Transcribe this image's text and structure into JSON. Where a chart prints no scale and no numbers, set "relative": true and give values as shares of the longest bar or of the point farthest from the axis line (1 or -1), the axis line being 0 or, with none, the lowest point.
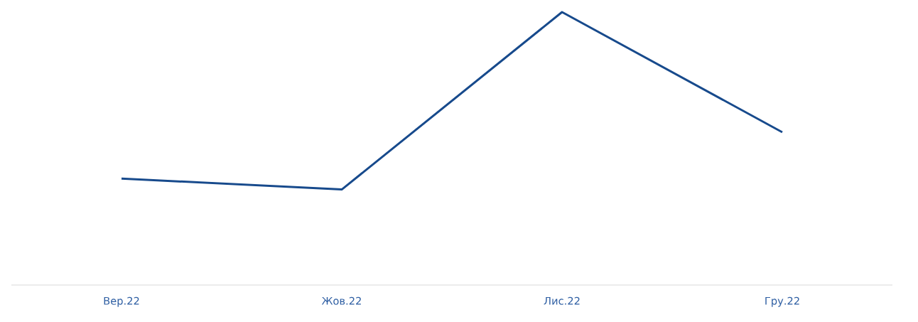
{
  "chart_data": {
    "type": "line",
    "relative": true,
    "categories": [
      "Вер.22",
      "Жов.22",
      "Лис.22",
      "Гру.22"
    ],
    "series": [
      {
        "color": "#174a8c",
        "values": [
          0.39,
          0.35,
          1,
          0.56
        ]
      }
    ]
  }
}
